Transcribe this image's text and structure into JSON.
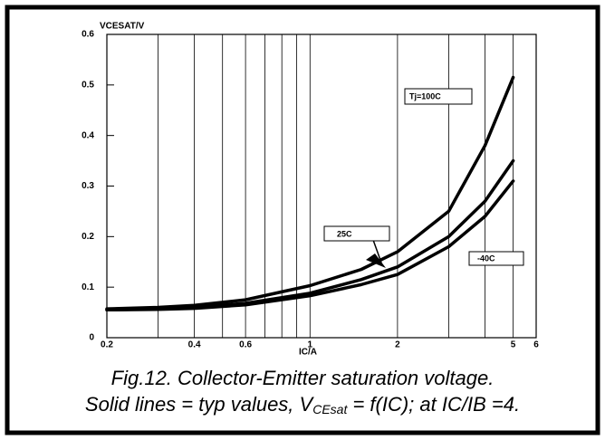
{
  "chart_data": {
    "type": "line",
    "y_label": "VCESAT/V",
    "x_label": "IC/A",
    "caption_line1": "Fig.12.   Collector-Emitter saturation voltage.",
    "caption_line2": [
      "Solid lines = typ values, V",
      "CEsat",
      " = f(IC); at IC/IB =4."
    ],
    "x_log": true,
    "xlim": [
      0.2,
      6
    ],
    "xticks": [
      0.2,
      0.4,
      0.6,
      1,
      2,
      5,
      6
    ],
    "x_grid_minor": [
      0.3,
      0.5,
      0.7,
      0.8,
      0.9,
      3,
      4
    ],
    "ylim": [
      0,
      0.6
    ],
    "yticks": [
      0,
      0.1,
      0.2,
      0.3,
      0.4,
      0.5,
      0.6
    ],
    "grid": true,
    "x": [
      0.2,
      0.3,
      0.4,
      0.6,
      1,
      1.5,
      2,
      3,
      4,
      5
    ],
    "series": [
      {
        "name": "Tj=100C",
        "color": "#000000",
        "values": [
          0.057,
          0.06,
          0.064,
          0.075,
          0.103,
          0.135,
          0.17,
          0.25,
          0.38,
          0.515
        ]
      },
      {
        "name": "25C",
        "color": "#000000",
        "values": [
          0.055,
          0.057,
          0.06,
          0.068,
          0.088,
          0.115,
          0.14,
          0.2,
          0.27,
          0.35
        ]
      },
      {
        "name": "-40C",
        "color": "#000000",
        "values": [
          0.055,
          0.056,
          0.058,
          0.065,
          0.083,
          0.105,
          0.125,
          0.18,
          0.24,
          0.31
        ]
      }
    ]
  }
}
